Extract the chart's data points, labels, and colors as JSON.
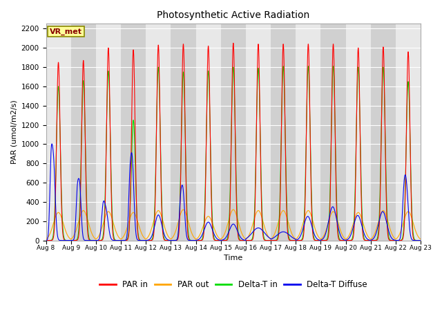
{
  "title": "Photosynthetic Active Radiation",
  "ylabel": "PAR (umol/m2/s)",
  "xlabel": "Time",
  "ylim": [
    0,
    2250
  ],
  "yticks": [
    0,
    200,
    400,
    600,
    800,
    1000,
    1200,
    1400,
    1600,
    1800,
    2000,
    2200
  ],
  "colors": {
    "PAR_in": "#ff0000",
    "PAR_out": "#ffa500",
    "Delta_T_in": "#00dd00",
    "Delta_T_Diffuse": "#0000ee"
  },
  "legend_labels": [
    "PAR in",
    "PAR out",
    "Delta-T in",
    "Delta-T Diffuse"
  ],
  "annotation_text": "VR_met",
  "annotation_box_color": "#ffff99",
  "annotation_box_edgecolor": "#888800",
  "background_color_light": "#e8e8e8",
  "background_color_dark": "#d0d0d0",
  "grid_color": "#ffffff",
  "n_days": 15,
  "start_day": 8,
  "day_peaks": {
    "PAR_in": [
      1850,
      1870,
      2000,
      1980,
      2030,
      2040,
      2020,
      2050,
      2040,
      2040,
      2040,
      2040,
      2000,
      2010,
      1960
    ],
    "PAR_out": [
      290,
      310,
      300,
      290,
      310,
      320,
      250,
      320,
      310,
      310,
      310,
      300,
      290,
      310,
      300
    ],
    "Delta_T_in": [
      1600,
      1660,
      1760,
      1250,
      1800,
      1750,
      1760,
      1800,
      1790,
      1810,
      1810,
      1810,
      1800,
      1800,
      1650
    ],
    "Delta_T_Diffuse_peak": [
      860,
      690,
      450,
      840,
      265,
      580,
      190,
      170,
      130,
      90,
      250,
      350,
      260,
      300,
      560
    ]
  }
}
